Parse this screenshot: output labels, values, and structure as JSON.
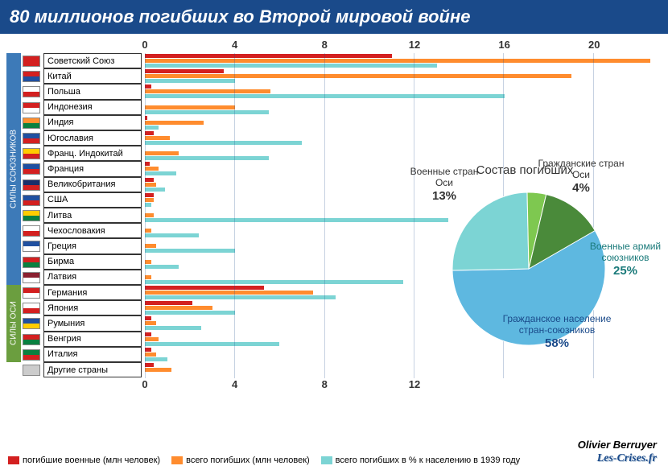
{
  "title": "80 миллионов погибших во Второй мировой войне",
  "colors": {
    "title_bg": "#1a4a8a",
    "military": "#d32020",
    "total": "#ff8c2e",
    "percent": "#7cd4d4",
    "side_allies": "#3d7ab8",
    "side_axis": "#6b9e3f"
  },
  "side_labels": {
    "allies": "СИЛЫ СОЮЗНИКОВ",
    "axis": "СИЛЫ ОСИ"
  },
  "top_axis": {
    "ticks": [
      0,
      4,
      8,
      12,
      16,
      20
    ],
    "max": 23
  },
  "bottom_axis": {
    "ticks": [
      0,
      4,
      8,
      12
    ],
    "max": 23
  },
  "countries": [
    {
      "name": "Советский Союз",
      "flag": [
        "#d32020",
        "#d32020"
      ],
      "mil": 11,
      "tot": 22.5,
      "pct": 13,
      "group": "allies"
    },
    {
      "name": "Китай",
      "flag": [
        "#d32020",
        "#2050a0"
      ],
      "mil": 3.5,
      "tot": 19,
      "pct": 4,
      "group": "allies"
    },
    {
      "name": "Польша",
      "flag": [
        "#fff",
        "#d32020"
      ],
      "mil": 0.3,
      "tot": 5.6,
      "pct": 16,
      "group": "allies"
    },
    {
      "name": "Индонезия",
      "flag": [
        "#d32020",
        "#fff"
      ],
      "mil": 0,
      "tot": 4,
      "pct": 5.5,
      "group": "allies"
    },
    {
      "name": "Индия",
      "flag": [
        "#ff9030",
        "#0a8040"
      ],
      "mil": 0.1,
      "tot": 2.6,
      "pct": 0.6,
      "group": "allies"
    },
    {
      "name": "Югославия",
      "flag": [
        "#2050a0",
        "#d32020"
      ],
      "mil": 0.4,
      "tot": 1.1,
      "pct": 7,
      "group": "allies"
    },
    {
      "name": "Франц. Индокитай",
      "flag": [
        "#ffcc00",
        "#d32020"
      ],
      "mil": 0,
      "tot": 1.5,
      "pct": 5.5,
      "group": "allies"
    },
    {
      "name": "Франция",
      "flag": [
        "#2050a0",
        "#d32020"
      ],
      "mil": 0.2,
      "tot": 0.6,
      "pct": 1.4,
      "group": "allies"
    },
    {
      "name": "Великобритания",
      "flag": [
        "#1a2f6a",
        "#d32020"
      ],
      "mil": 0.4,
      "tot": 0.5,
      "pct": 0.9,
      "group": "allies"
    },
    {
      "name": "США",
      "flag": [
        "#2050a0",
        "#d32020"
      ],
      "mil": 0.4,
      "tot": 0.4,
      "pct": 0.3,
      "group": "allies"
    },
    {
      "name": "Литва",
      "flag": [
        "#ffcc00",
        "#0a8040"
      ],
      "mil": 0,
      "tot": 0.4,
      "pct": 13.5,
      "group": "allies"
    },
    {
      "name": "Чехословакия",
      "flag": [
        "#fff",
        "#d32020"
      ],
      "mil": 0,
      "tot": 0.3,
      "pct": 2.4,
      "group": "allies"
    },
    {
      "name": "Греция",
      "flag": [
        "#2050a0",
        "#fff"
      ],
      "mil": 0,
      "tot": 0.5,
      "pct": 4,
      "group": "allies"
    },
    {
      "name": "Бирма",
      "flag": [
        "#d32020",
        "#0a8040"
      ],
      "mil": 0,
      "tot": 0.3,
      "pct": 1.5,
      "group": "allies"
    },
    {
      "name": "Латвия",
      "flag": [
        "#8a2030",
        "#fff"
      ],
      "mil": 0,
      "tot": 0.3,
      "pct": 11.5,
      "group": "allies"
    },
    {
      "name": "Германия",
      "flag": [
        "#d32020",
        "#fff"
      ],
      "mil": 5.3,
      "tot": 7.5,
      "pct": 8.5,
      "group": "axis"
    },
    {
      "name": "Япония",
      "flag": [
        "#fff",
        "#d32020"
      ],
      "mil": 2.1,
      "tot": 3,
      "pct": 4,
      "group": "axis"
    },
    {
      "name": "Румыния",
      "flag": [
        "#2050a0",
        "#ffcc00"
      ],
      "mil": 0.3,
      "tot": 0.5,
      "pct": 2.5,
      "group": "axis"
    },
    {
      "name": "Венгрия",
      "flag": [
        "#d32020",
        "#0a8040"
      ],
      "mil": 0.3,
      "tot": 0.6,
      "pct": 6,
      "group": "axis"
    },
    {
      "name": "Италия",
      "flag": [
        "#0a8040",
        "#d32020"
      ],
      "mil": 0.3,
      "tot": 0.5,
      "pct": 1,
      "group": "axis"
    },
    {
      "name": "Другие страны",
      "flag": [
        "#ccc",
        "#ccc"
      ],
      "mil": 0.4,
      "tot": 1.2,
      "pct": 0,
      "group": "other"
    }
  ],
  "pie": {
    "title": "Состав погибших",
    "slices": [
      {
        "label": "Гражданское население стран-союзников",
        "pct": 58,
        "color": "#5eb8e0",
        "label_color": "#1a4a8a"
      },
      {
        "label": "Военные армий союзников",
        "pct": 25,
        "color": "#7cd4d4",
        "label_color": "#1a7a7a"
      },
      {
        "label": "Гражданские стран Оси",
        "pct": 4,
        "color": "#7ec850",
        "label_color": "#333"
      },
      {
        "label": "Военные стран Оси",
        "pct": 13,
        "color": "#4a8a3a",
        "label_color": "#333"
      }
    ]
  },
  "legend": [
    {
      "color": "#d32020",
      "label": "погибшие военные (млн человек)"
    },
    {
      "color": "#ff8c2e",
      "label": "всего погибших (млн человек)"
    },
    {
      "color": "#7cd4d4",
      "label": "всего погибших в % к населению в 1939 году"
    }
  ],
  "credit": "Olivier Berruyer",
  "site": "Les-Crises.fr"
}
